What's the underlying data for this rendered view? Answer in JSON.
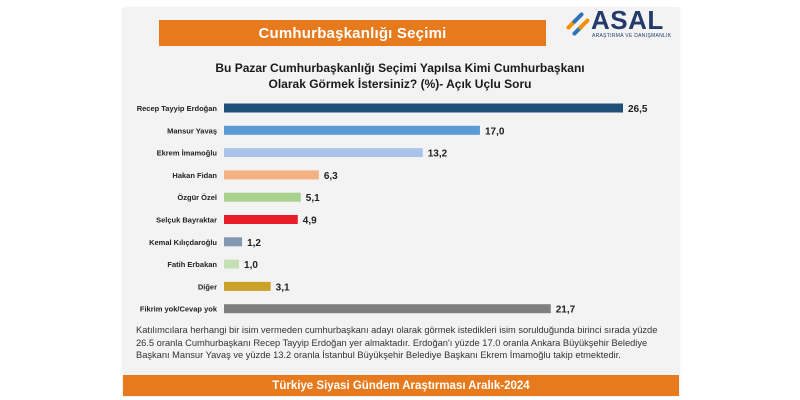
{
  "header": {
    "title": "Cumhurbaşkanlığı Seçimi"
  },
  "logo": {
    "name": "ASAL",
    "subtitle": "ARAŞTIRMA VE DANIŞMANLIK",
    "icon": "asal-logo-mark"
  },
  "question": {
    "line1": "Bu Pazar Cumhurbaşkanlığı Seçimi Yapılsa Kimi Cumhurbaşkanı",
    "line2": "Olarak Görmek İstersiniz? (%)- Açık Uçlu Soru"
  },
  "chart_data": {
    "type": "bar",
    "orientation": "horizontal",
    "title": "",
    "xlabel": "",
    "ylabel": "",
    "xlim": [
      0,
      26.5
    ],
    "grid": false,
    "legend": "none",
    "categories": [
      "Recep Tayyip Erdoğan",
      "Mansur Yavaş",
      "Ekrem İmamoğlu",
      "Hakan Fidan",
      "Özgür Özel",
      "Selçuk Bayraktar",
      "Kemal Kılıçdaroğlu",
      "Fatih Erbakan",
      "Diğer",
      "Fikrim yok/Cevap yok"
    ],
    "values": [
      26.5,
      17.0,
      13.2,
      6.3,
      5.1,
      4.9,
      1.2,
      1.0,
      3.1,
      21.7
    ],
    "value_labels": [
      "26,5",
      "17,0",
      "13,2",
      "6,3",
      "5,1",
      "4,9",
      "1,2",
      "1,0",
      "3,1",
      "21,7"
    ],
    "colors": [
      "#1f4e79",
      "#5b9bd5",
      "#a9c4e8",
      "#f4b183",
      "#a9d18e",
      "#e81c24",
      "#8497b0",
      "#c5e0b4",
      "#c9a227",
      "#7f7f7f"
    ]
  },
  "footnote": "Katılımcılara herhangi bir isim vermeden cumhurbaşkanı adayı olarak görmek istedikleri isim sorulduğunda birinci sırada yüzde 26.5 oranla Cumhurbaşkanı Recep Tayyip Erdoğan yer almaktadır. Erdoğan'ı yüzde 17.0 oranla Ankara Büyükşehir Belediye Başkanı Mansur Yavaş ve yüzde 13.2 oranla İstanbul Büyükşehir Belediye Başkanı Ekrem İmamoğlu takip etmektedir.",
  "footer": {
    "title": "Türkiye Siyasi Gündem Araştırması Aralık-2024"
  }
}
